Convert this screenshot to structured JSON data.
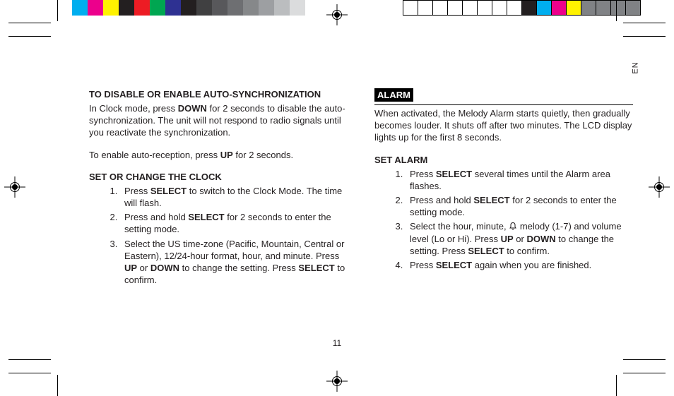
{
  "lang_tag": "EN",
  "page_number": "11",
  "colorbar_left": [
    "#00aeef",
    "#ec008c",
    "#fff200",
    "#231f20",
    "#ed1c24",
    "#00a651",
    "#2e3192",
    "#231f20",
    "#404041",
    "#58585b",
    "#6e6f72",
    "#86888a",
    "#9d9fa2",
    "#bbbdbf",
    "#dbdcdd",
    "#ffffff"
  ],
  "colorbar_right_fills": [
    "#ffffff",
    "#ffffff",
    "#ffffff",
    "#ffffff",
    "#ffffff",
    "#ffffff",
    "#ffffff",
    "#ffffff",
    "#231f20",
    "#00aeef",
    "#ec008c",
    "#fff200",
    "#808285",
    "#808285",
    "#808285",
    "#808285"
  ],
  "left": {
    "h1": "TO DISABLE OR ENABLE AUTO-SYNCHRONIZATION",
    "p1a": "In Clock mode, press ",
    "p1b": "DOWN",
    "p1c": " for 2 seconds to disable the auto-synchronization. The unit will not respond to radio signals until you reactivate the synchronization.",
    "p2a": "To enable auto-reception, press ",
    "p2b": "UP",
    "p2c": " for 2 seconds.",
    "h2": "SET OR CHANGE THE CLOCK",
    "li1a": "Press ",
    "li1b": "SELECT",
    "li1c": " to switch to the Clock Mode. The time will flash.",
    "li2a": "Press and hold ",
    "li2b": "SELECT",
    "li2c": " for 2 seconds to enter the setting mode.",
    "li3a": "Select the US time-zone (Pacific, Mountain, Central or Eastern), 12/24-hour format, hour, and minute.  Press ",
    "li3b": "UP",
    "li3c": " or ",
    "li3d": "DOWN",
    "li3e": " to change the setting. Press  ",
    "li3f": "SELECT",
    "li3g": " to confirm."
  },
  "right": {
    "h1": "ALARM",
    "p1": "When activated, the Melody Alarm starts quietly, then gradually becomes louder. It shuts off after two minutes. The LCD display lights up for the first 8 seconds.",
    "h2": "SET ALARM",
    "li1a": "Press ",
    "li1b": "SELECT",
    "li1c": " several times until the Alarm area flashes.",
    "li2a": "Press and hold ",
    "li2b": "SELECT",
    "li2c": " for 2 seconds to enter the setting mode.",
    "li3a": "Select the hour, minute,  ",
    "li3b": " melody (1-7) and volume level (Lo or Hi). Press ",
    "li3c": "UP",
    "li3d": " or ",
    "li3e": "DOWN",
    "li3f": " to change the setting.  Press ",
    "li3g": "SELECT",
    "li3h": " to confirm.",
    "li4a": "Press ",
    "li4b": "SELECT",
    "li4c": " again when you are finished."
  }
}
